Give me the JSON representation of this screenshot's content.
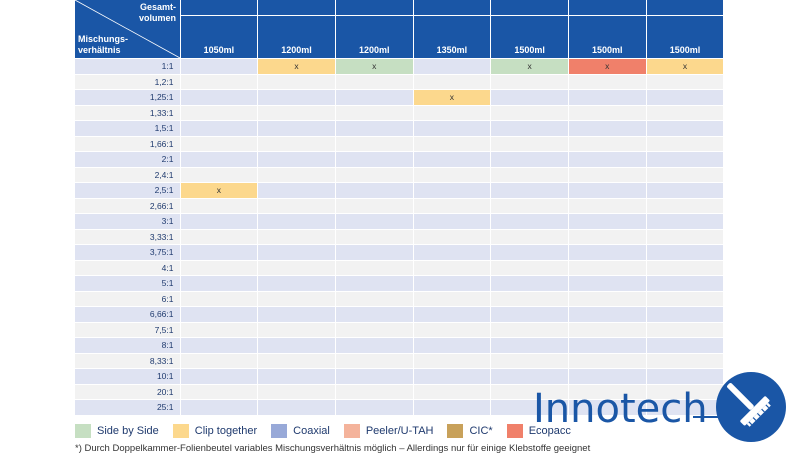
{
  "table": {
    "corner_top": [
      "Gesamt-",
      "volumen"
    ],
    "corner_bottom": [
      "Mischungs-",
      "verhältnis"
    ],
    "volumes": [
      "1050ml",
      "1200ml",
      "1200ml",
      "1350ml",
      "1500ml",
      "1500ml",
      "1500ml"
    ],
    "ratios": [
      "1:1",
      "1,2:1",
      "1,25:1",
      "1,33:1",
      "1,5:1",
      "1,66:1",
      "2:1",
      "2,4:1",
      "2,5:1",
      "2,66:1",
      "3:1",
      "3,33:1",
      "3,75:1",
      "4:1",
      "5:1",
      "6:1",
      "6,66:1",
      "7,5:1",
      "8:1",
      "8,33:1",
      "10:1",
      "20:1",
      "25:1"
    ],
    "marks": [
      {
        "row": 0,
        "col": 1,
        "type": "clip-together",
        "text": "x"
      },
      {
        "row": 0,
        "col": 2,
        "type": "side-by-side",
        "text": "x"
      },
      {
        "row": 0,
        "col": 4,
        "type": "side-by-side",
        "text": "x"
      },
      {
        "row": 0,
        "col": 5,
        "type": "ecopacc",
        "text": "x"
      },
      {
        "row": 0,
        "col": 6,
        "type": "clip-together",
        "text": "x"
      },
      {
        "row": 2,
        "col": 3,
        "type": "clip-together",
        "text": "x"
      },
      {
        "row": 8,
        "col": 0,
        "type": "clip-together",
        "text": "x"
      }
    ]
  },
  "legend": [
    {
      "key": "side-by-side",
      "label": "Side by Side",
      "color": "#c6dfc2"
    },
    {
      "key": "clip-together",
      "label": "Clip together",
      "color": "#fcd88d"
    },
    {
      "key": "coaxial",
      "label": "Coaxial",
      "color": "#98a9d8"
    },
    {
      "key": "peeler-u-tah",
      "label": "Peeler/U-TAH",
      "color": "#f4b39b"
    },
    {
      "key": "cic",
      "label": "CIC*",
      "color": "#c8a15a"
    },
    {
      "key": "ecopacc",
      "label": "Ecopacc",
      "color": "#f0806a"
    }
  ],
  "footnote": "*) Durch Doppelkammer-Folienbeutel variables Mischungsverhältnis möglich – Allerdings nur für einige Klebstoffe geeignet",
  "logo": {
    "text": "Innotech",
    "color": "#1a56a6",
    "icon": "squeegee-circle-icon"
  }
}
